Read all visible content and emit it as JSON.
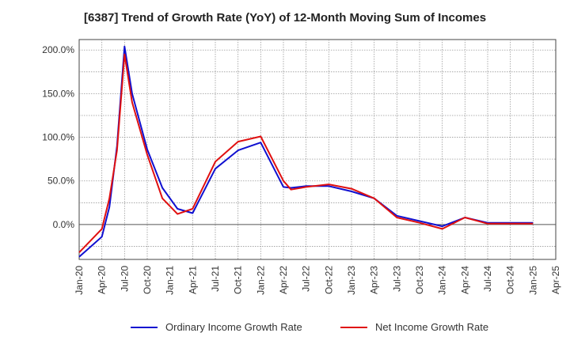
{
  "chart_data": {
    "type": "line",
    "title": "[6387]  Trend of Growth Rate (YoY) of 12-Month Moving Sum of Incomes",
    "x_ticks": [
      "Jan-20",
      "Apr-20",
      "Jul-20",
      "Oct-20",
      "Jan-21",
      "Apr-21",
      "Jul-21",
      "Oct-21",
      "Jan-22",
      "Apr-22",
      "Jul-22",
      "Oct-22",
      "Jan-23",
      "Apr-23",
      "Jul-23",
      "Oct-23",
      "Jan-24",
      "Apr-24",
      "Jul-24",
      "Oct-24",
      "Jan-25",
      "Apr-25"
    ],
    "y_ticks": [
      "200.0%",
      "150.0%",
      "100.0%",
      "50.0%",
      "0.0%"
    ],
    "y_tick_values": [
      200,
      150,
      100,
      50,
      0
    ],
    "ylim": [
      -40,
      212
    ],
    "xlim": [
      0,
      63
    ],
    "grid": true,
    "legend_position": "bottom",
    "colors": {
      "ordinary": "#1010d0",
      "net": "#e01010",
      "grid": "#999999",
      "zero_line": "#555555"
    },
    "series": [
      {
        "name": "Ordinary Income Growth Rate",
        "color": "#1010d0",
        "x": [
          0,
          3,
          4,
          5,
          6,
          7,
          9,
          11,
          13,
          15,
          18,
          21,
          24,
          27,
          28,
          30,
          33,
          36,
          39,
          42,
          45,
          48,
          51,
          54,
          57,
          60
        ],
        "y": [
          -37,
          -14,
          20,
          90,
          204,
          150,
          86,
          42,
          18,
          13,
          64,
          85,
          94,
          43,
          42,
          44,
          44,
          38,
          30,
          10,
          4,
          -2,
          8,
          2,
          2,
          2
        ]
      },
      {
        "name": "Net Income Growth Rate",
        "color": "#e01010",
        "x": [
          0,
          3,
          4,
          5,
          6,
          7,
          9,
          11,
          13,
          15,
          18,
          21,
          24,
          27,
          28,
          30,
          33,
          36,
          39,
          42,
          45,
          48,
          51,
          54,
          57,
          60
        ],
        "y": [
          -32,
          -5,
          30,
          85,
          195,
          140,
          80,
          30,
          12,
          18,
          72,
          95,
          101,
          50,
          40,
          43,
          46,
          41,
          30,
          8,
          2,
          -5,
          8,
          1,
          1,
          1
        ]
      }
    ]
  }
}
